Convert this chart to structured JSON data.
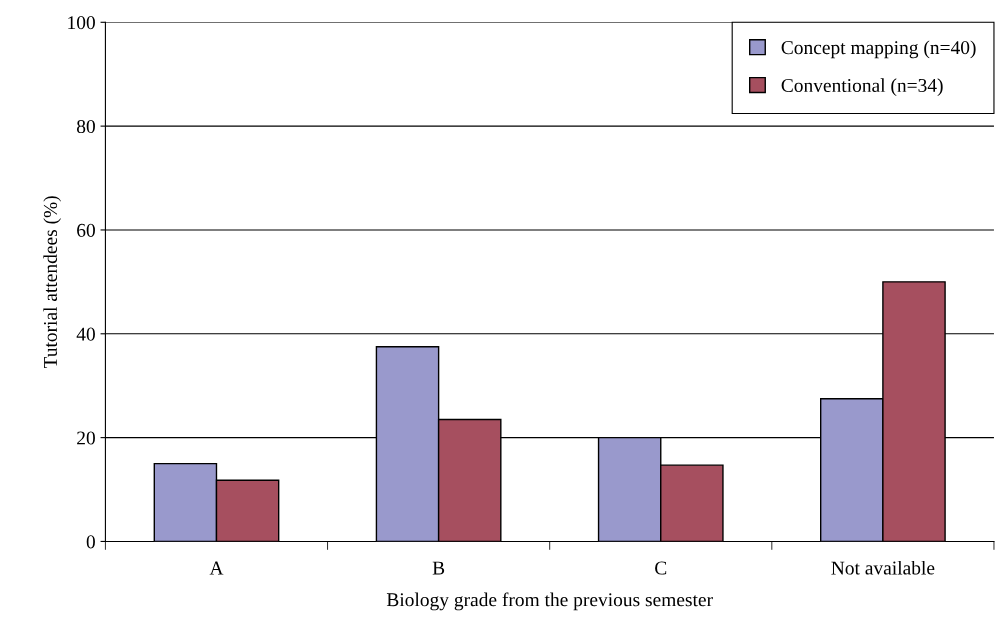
{
  "chart_data": {
    "type": "bar",
    "xlabel": "Biology grade from the previous semester",
    "ylabel": "Tutorial attendees (%)",
    "categories": [
      "A",
      "B",
      "C",
      "Not available"
    ],
    "series": [
      {
        "name": "Concept mapping (n=40)",
        "color": "#9999cc",
        "values": [
          15,
          37.5,
          20,
          27.5
        ]
      },
      {
        "name": "Conventional (n=34)",
        "color": "#a64f5f",
        "values": [
          11.8,
          23.5,
          14.7,
          50
        ]
      }
    ],
    "ylim": [
      0,
      100
    ],
    "yticks": [
      0,
      20,
      40,
      60,
      80,
      100
    ],
    "grid": "y",
    "legend": "top right"
  }
}
